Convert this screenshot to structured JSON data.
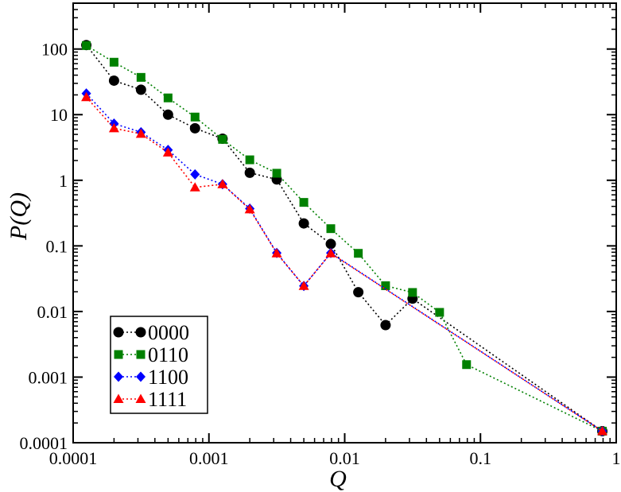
{
  "chart_data": {
    "type": "scatter",
    "title": "",
    "xlabel": "Q",
    "ylabel": "P(Q)",
    "x_scale": "log",
    "y_scale": "log",
    "xlim": [
      0.0001,
      1.0
    ],
    "ylim": [
      0.0001,
      500
    ],
    "grid": false,
    "legend_position": "bottom-left",
    "x_ticks": [
      {
        "value": 0.0001,
        "label": "0.0001"
      },
      {
        "value": 0.001,
        "label": "0.001"
      },
      {
        "value": 0.01,
        "label": "0.01"
      },
      {
        "value": 0.1,
        "label": "0.1"
      },
      {
        "value": 1,
        "label": "1"
      }
    ],
    "y_ticks": [
      {
        "value": 0.0001,
        "label": "0.0001"
      },
      {
        "value": 0.001,
        "label": "0.001"
      },
      {
        "value": 0.01,
        "label": "0.01"
      },
      {
        "value": 0.1,
        "label": "0.1"
      },
      {
        "value": 1,
        "label": "1"
      },
      {
        "value": 10,
        "label": "10"
      },
      {
        "value": 100,
        "label": "100"
      }
    ],
    "series": [
      {
        "name": "0000",
        "color": "#000000",
        "marker": "circle",
        "points": [
          [
            0.000125,
            115
          ],
          [
            0.0002,
            33
          ],
          [
            0.000316,
            24
          ],
          [
            0.0005,
            10
          ],
          [
            0.00079,
            6.2
          ],
          [
            0.00126,
            4.3
          ],
          [
            0.002,
            1.3
          ],
          [
            0.00316,
            1.03
          ],
          [
            0.005,
            0.22
          ],
          [
            0.0079,
            0.107
          ],
          [
            0.0126,
            0.0197
          ],
          [
            0.02,
            0.0062
          ],
          [
            0.0316,
            0.0157
          ],
          [
            0.79,
            0.00015
          ]
        ]
      },
      {
        "name": "0110",
        "color": "#008000",
        "marker": "square",
        "points": [
          [
            0.000125,
            113
          ],
          [
            0.0002,
            63
          ],
          [
            0.000316,
            37
          ],
          [
            0.0005,
            18
          ],
          [
            0.00079,
            9.2
          ],
          [
            0.00126,
            4.2
          ],
          [
            0.002,
            2.05
          ],
          [
            0.00316,
            1.28
          ],
          [
            0.005,
            0.46
          ],
          [
            0.0079,
            0.183
          ],
          [
            0.0126,
            0.077
          ],
          [
            0.02,
            0.0247
          ],
          [
            0.0316,
            0.0195
          ],
          [
            0.05,
            0.0097
          ],
          [
            0.079,
            0.00155
          ],
          [
            0.79,
            0.00015
          ]
        ]
      },
      {
        "name": "1100",
        "color": "#0000ff",
        "marker": "diamond",
        "points": [
          [
            0.000125,
            21
          ],
          [
            0.0002,
            7.3
          ],
          [
            0.000316,
            5.4
          ],
          [
            0.0005,
            2.9
          ],
          [
            0.00079,
            1.23
          ],
          [
            0.00126,
            0.87
          ],
          [
            0.002,
            0.37
          ],
          [
            0.00316,
            0.078
          ],
          [
            0.005,
            0.0245
          ],
          [
            0.0079,
            0.078
          ],
          [
            0.79,
            0.00015
          ]
        ]
      },
      {
        "name": "1111",
        "color": "#ff0000",
        "marker": "triangle",
        "points": [
          [
            0.000125,
            18.5
          ],
          [
            0.0002,
            6.2
          ],
          [
            0.000316,
            5.1
          ],
          [
            0.0005,
            2.65
          ],
          [
            0.00079,
            0.78
          ],
          [
            0.00126,
            0.87
          ],
          [
            0.002,
            0.36
          ],
          [
            0.00316,
            0.077
          ],
          [
            0.005,
            0.0245
          ],
          [
            0.0079,
            0.077
          ],
          [
            0.79,
            0.00015
          ]
        ]
      }
    ]
  }
}
